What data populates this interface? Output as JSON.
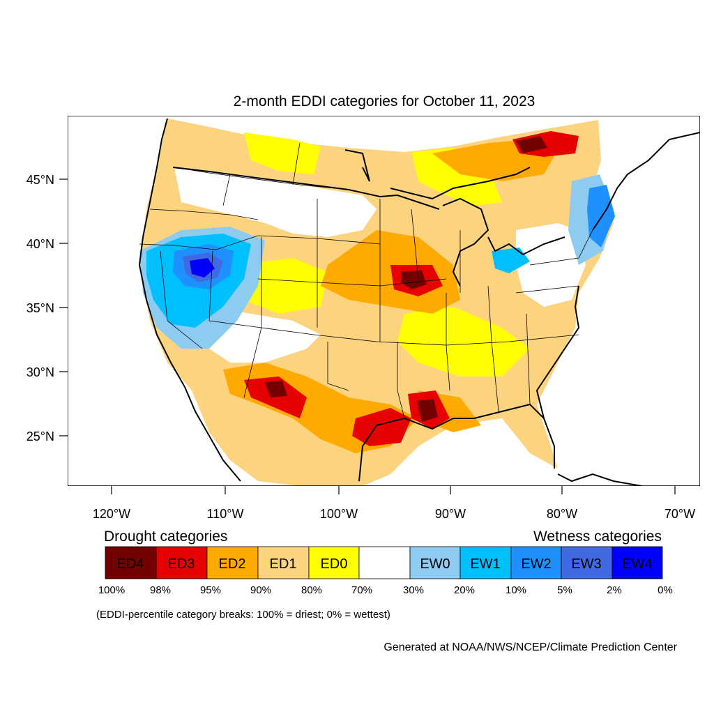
{
  "title": "2-month EDDI categories for October 11, 2023",
  "lat_labels": [
    "45°N",
    "40°N",
    "35°N",
    "30°N",
    "25°N"
  ],
  "lon_labels": [
    "120°W",
    "110°W",
    "100°W",
    "90°W",
    "80°W",
    "70°W"
  ],
  "legend": {
    "drought_title": "Drought categories",
    "wetness_title": "Wetness categories",
    "categories": [
      {
        "label": "ED4",
        "color": "#730000",
        "text_color": "#ffffff"
      },
      {
        "label": "ED3",
        "color": "#e60000",
        "text_color": "#ffffff"
      },
      {
        "label": "ED2",
        "color": "#ffaa00",
        "text_color": "#ffffff"
      },
      {
        "label": "ED1",
        "color": "#fcd37f",
        "text_color": "#000000"
      },
      {
        "label": "ED0",
        "color": "#ffff00",
        "text_color": "#000000"
      },
      {
        "label": "",
        "color": "#ffffff",
        "text_color": "#000000"
      },
      {
        "label": "EW0",
        "color": "#8ecbf0",
        "text_color": "#000000"
      },
      {
        "label": "EW1",
        "color": "#00bfff",
        "text_color": "#000000"
      },
      {
        "label": "EW2",
        "color": "#1e90ff",
        "text_color": "#ffffff"
      },
      {
        "label": "EW3",
        "color": "#4169e1",
        "text_color": "#ffffff"
      },
      {
        "label": "EW4",
        "color": "#0000ff",
        "text_color": "#ffffff"
      }
    ],
    "breaks": [
      "100%",
      "98%",
      "95%",
      "90%",
      "80%",
      "70%",
      "30%",
      "20%",
      "10%",
      "5%",
      "2%",
      "0%"
    ],
    "note": "(EDDI-percentile category breaks: 100% = driest; 0% = wettest)"
  },
  "credit": "Generated at NOAA/NWS/NCEP/Climate Prediction Center"
}
